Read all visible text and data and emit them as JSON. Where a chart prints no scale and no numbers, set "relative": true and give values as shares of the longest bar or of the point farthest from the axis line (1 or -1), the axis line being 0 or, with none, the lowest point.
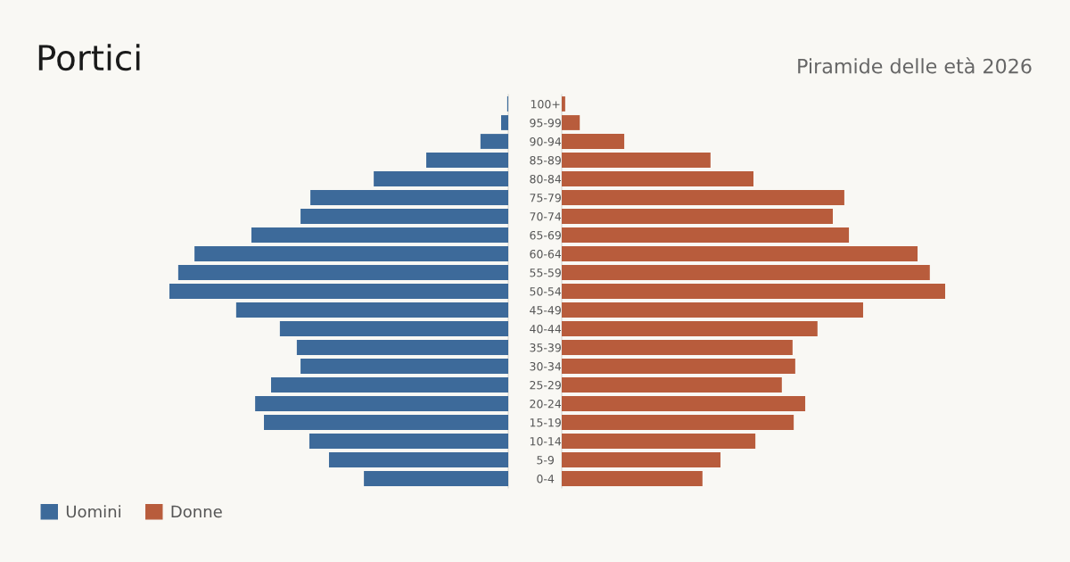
{
  "chart_data": [
    {
      "type": "bar",
      "title": "Portici",
      "orientation": "horizontal",
      "relative": true,
      "legend": "bottom left",
      "grid": false,
      "categories": [
        "100+",
        "95-99",
        "90-94",
        "85-89",
        "80-84",
        "75-79",
        "70-74",
        "65-69",
        "60-64",
        "55-59",
        "50-54",
        "45-49",
        "40-44",
        "35-39",
        "30-34",
        "25-29",
        "20-24",
        "15-19",
        "10-14",
        "5-9",
        "0-4"
      ],
      "series": [
        {
          "name": "Uomini",
          "color": "#3d6a9a",
          "values": [
            -0.003,
            -0.021,
            -0.082,
            -0.242,
            -0.397,
            -0.584,
            -0.613,
            -0.758,
            -0.926,
            -0.974,
            -1,
            -0.803,
            -0.674,
            -0.624,
            -0.613,
            -0.7,
            -0.747,
            -0.721,
            -0.587,
            -0.529,
            -0.426
          ]
        }
      ]
    },
    {
      "type": "bar",
      "subtitle": "Piramide delle età 2026",
      "orientation": "horizontal",
      "relative": true,
      "legend": "bottom left",
      "categories": [
        null,
        null,
        null,
        null,
        null,
        null,
        null,
        null,
        null,
        null,
        null,
        null,
        null,
        null,
        null,
        null,
        null,
        null,
        null,
        null,
        null
      ],
      "series": [
        {
          "name": "Donne",
          "color": "#b85c3c",
          "values": [
            0.009,
            0.047,
            0.163,
            0.388,
            0.5,
            0.737,
            0.707,
            0.749,
            0.928,
            0.96,
            1,
            0.786,
            0.667,
            0.602,
            0.609,
            0.574,
            0.635,
            0.605,
            0.505,
            0.414,
            0.367
          ]
        }
      ]
    }
  ]
}
